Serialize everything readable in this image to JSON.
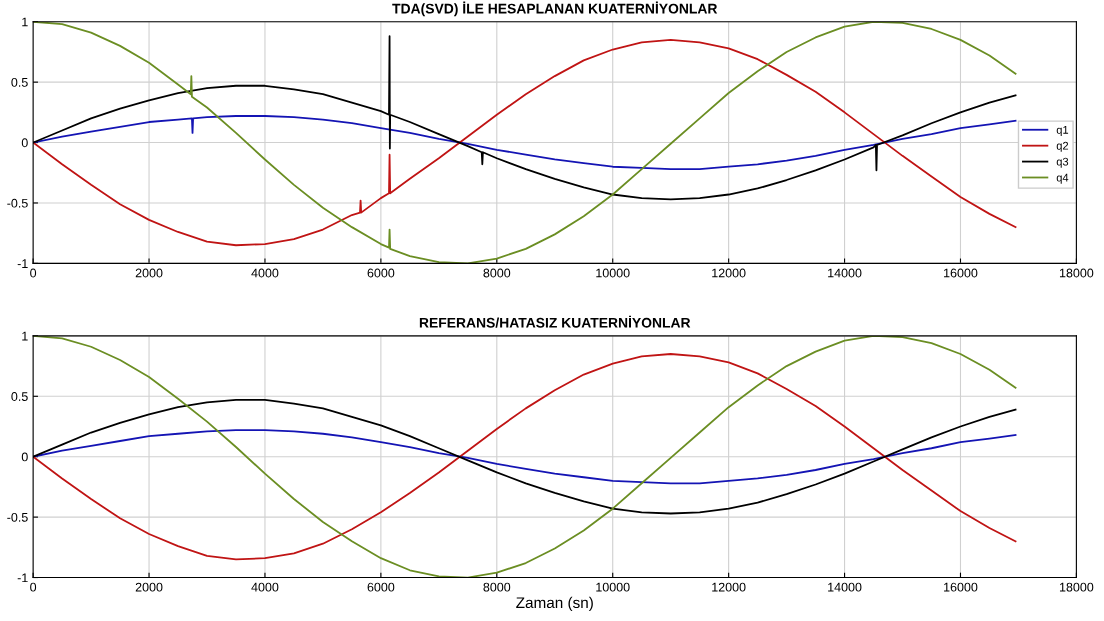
{
  "chart_data": [
    {
      "type": "line",
      "title": "TDA(SVD) İLE HESAPLANAN KUATERNİYONLAR",
      "xlim": [
        0,
        18000
      ],
      "xticks": [
        0,
        2000,
        4000,
        6000,
        8000,
        10000,
        12000,
        14000,
        16000,
        18000
      ],
      "ylim": [
        -1,
        1
      ],
      "yticks": [
        -1,
        -0.5,
        0,
        0.5,
        1
      ],
      "grid": true,
      "legend": "right",
      "line_style": "solid",
      "series": [
        {
          "name": "q1",
          "color": "#1414b4",
          "x": [
            0,
            500,
            1000,
            1500,
            2000,
            2500,
            2740,
            2750,
            2760,
            3000,
            3500,
            4000,
            4500,
            5000,
            5500,
            6000,
            6500,
            7000,
            7500,
            8000,
            8500,
            9000,
            9500,
            10000,
            10500,
            11000,
            11500,
            12000,
            12500,
            13000,
            13500,
            14000,
            14500,
            15000,
            15500,
            16000,
            16500,
            16950
          ],
          "values": [
            0,
            0.05,
            0.09,
            0.13,
            0.17,
            0.19,
            0.2,
            0.08,
            0.2,
            0.21,
            0.22,
            0.22,
            0.21,
            0.19,
            0.16,
            0.12,
            0.08,
            0.03,
            -0.01,
            -0.06,
            -0.1,
            -0.14,
            -0.17,
            -0.2,
            -0.21,
            -0.22,
            -0.22,
            -0.2,
            -0.18,
            -0.15,
            -0.11,
            -0.06,
            -0.02,
            0.03,
            0.07,
            0.12,
            0.15,
            0.18
          ]
        },
        {
          "name": "q2",
          "color": "#c01414",
          "x": [
            0,
            500,
            1000,
            1500,
            2000,
            2500,
            3000,
            3500,
            4000,
            4500,
            5000,
            5500,
            5640,
            5650,
            5660,
            6000,
            6140,
            6150,
            6160,
            6500,
            7000,
            7500,
            8000,
            8500,
            9000,
            9500,
            10000,
            10500,
            11000,
            11500,
            12000,
            12500,
            13000,
            13500,
            14000,
            14500,
            15000,
            15500,
            16000,
            16500,
            16950
          ],
          "values": [
            0,
            -0.18,
            -0.35,
            -0.51,
            -0.64,
            -0.74,
            -0.82,
            -0.85,
            -0.84,
            -0.8,
            -0.72,
            -0.6,
            -0.58,
            -0.48,
            -0.58,
            -0.46,
            -0.42,
            -0.1,
            -0.42,
            -0.3,
            -0.13,
            0.05,
            0.23,
            0.4,
            0.55,
            0.68,
            0.77,
            0.83,
            0.85,
            0.83,
            0.78,
            0.69,
            0.56,
            0.42,
            0.25,
            0.07,
            -0.11,
            -0.28,
            -0.45,
            -0.59,
            -0.7
          ]
        },
        {
          "name": "q3",
          "color": "#000000",
          "x": [
            0,
            500,
            1000,
            1500,
            2000,
            2500,
            3000,
            3500,
            4000,
            4500,
            5000,
            5500,
            6000,
            6140,
            6150,
            6155,
            6160,
            6500,
            7000,
            7500,
            7740,
            7750,
            7760,
            8000,
            8500,
            9000,
            9500,
            10000,
            10500,
            11000,
            11500,
            12000,
            12500,
            13000,
            13500,
            14000,
            14500,
            14540,
            14550,
            14560,
            15000,
            15500,
            16000,
            16500,
            16950
          ],
          "values": [
            0,
            0.1,
            0.2,
            0.28,
            0.35,
            0.41,
            0.45,
            0.47,
            0.47,
            0.44,
            0.4,
            0.33,
            0.26,
            0.23,
            0.88,
            -0.05,
            0.23,
            0.17,
            0.07,
            -0.03,
            -0.08,
            -0.18,
            -0.08,
            -0.13,
            -0.22,
            -0.3,
            -0.37,
            -0.43,
            -0.46,
            -0.47,
            -0.46,
            -0.43,
            -0.38,
            -0.31,
            -0.23,
            -0.14,
            -0.04,
            -0.02,
            -0.23,
            -0.02,
            0.06,
            0.16,
            0.25,
            0.33,
            0.39
          ]
        },
        {
          "name": "q4",
          "color": "#6b8e23",
          "x": [
            0,
            500,
            1000,
            1500,
            2000,
            2500,
            2720,
            2730,
            2740,
            3000,
            3500,
            4000,
            4500,
            5000,
            5500,
            6000,
            6140,
            6150,
            6160,
            6500,
            7000,
            7500,
            8000,
            8500,
            9000,
            9500,
            10000,
            10500,
            11000,
            11500,
            12000,
            12500,
            13000,
            13500,
            14000,
            14500,
            15000,
            15500,
            16000,
            16500,
            16950
          ],
          "values": [
            1,
            0.98,
            0.91,
            0.8,
            0.66,
            0.48,
            0.4,
            0.55,
            0.38,
            0.29,
            0.08,
            -0.14,
            -0.35,
            -0.54,
            -0.7,
            -0.84,
            -0.87,
            -0.72,
            -0.88,
            -0.94,
            -0.99,
            -1,
            -0.96,
            -0.88,
            -0.76,
            -0.61,
            -0.43,
            -0.22,
            -0.01,
            0.2,
            0.41,
            0.59,
            0.75,
            0.87,
            0.96,
            1,
            0.99,
            0.94,
            0.85,
            0.72,
            0.57
          ]
        }
      ]
    },
    {
      "type": "line",
      "title": "REFERANS/HATASIZ KUATERNİYONLAR",
      "xlabel": "Zaman (sn)",
      "xlim": [
        0,
        18000
      ],
      "xticks": [
        0,
        2000,
        4000,
        6000,
        8000,
        10000,
        12000,
        14000,
        16000,
        18000
      ],
      "ylim": [
        -1,
        1
      ],
      "yticks": [
        -1,
        -0.5,
        0,
        0.5,
        1
      ],
      "grid": true,
      "line_style": "solid",
      "x": [
        0,
        500,
        1000,
        1500,
        2000,
        2500,
        3000,
        3500,
        4000,
        4500,
        5000,
        5500,
        6000,
        6500,
        7000,
        7500,
        8000,
        8500,
        9000,
        9500,
        10000,
        10500,
        11000,
        11500,
        12000,
        12500,
        13000,
        13500,
        14000,
        14500,
        15000,
        15500,
        16000,
        16500,
        16950
      ],
      "series": [
        {
          "color": "#1414b4",
          "values": [
            0,
            0.05,
            0.09,
            0.13,
            0.17,
            0.19,
            0.21,
            0.22,
            0.22,
            0.21,
            0.19,
            0.16,
            0.12,
            0.08,
            0.03,
            -0.01,
            -0.06,
            -0.1,
            -0.14,
            -0.17,
            -0.2,
            -0.21,
            -0.22,
            -0.22,
            -0.2,
            -0.18,
            -0.15,
            -0.11,
            -0.06,
            -0.02,
            0.03,
            0.07,
            0.12,
            0.15,
            0.18
          ]
        },
        {
          "color": "#c01414",
          "values": [
            0,
            -0.18,
            -0.35,
            -0.51,
            -0.64,
            -0.74,
            -0.82,
            -0.85,
            -0.84,
            -0.8,
            -0.72,
            -0.6,
            -0.46,
            -0.3,
            -0.13,
            0.05,
            0.23,
            0.4,
            0.55,
            0.68,
            0.77,
            0.83,
            0.85,
            0.83,
            0.78,
            0.69,
            0.56,
            0.42,
            0.25,
            0.07,
            -0.11,
            -0.28,
            -0.45,
            -0.59,
            -0.7
          ]
        },
        {
          "color": "#000000",
          "values": [
            0,
            0.1,
            0.2,
            0.28,
            0.35,
            0.41,
            0.45,
            0.47,
            0.47,
            0.44,
            0.4,
            0.33,
            0.26,
            0.17,
            0.07,
            -0.03,
            -0.13,
            -0.22,
            -0.3,
            -0.37,
            -0.43,
            -0.46,
            -0.47,
            -0.46,
            -0.43,
            -0.38,
            -0.31,
            -0.23,
            -0.14,
            -0.04,
            0.06,
            0.16,
            0.25,
            0.33,
            0.39
          ]
        },
        {
          "color": "#6b8e23",
          "values": [
            1,
            0.98,
            0.91,
            0.8,
            0.66,
            0.48,
            0.29,
            0.08,
            -0.14,
            -0.35,
            -0.54,
            -0.7,
            -0.84,
            -0.94,
            -0.99,
            -1,
            -0.96,
            -0.88,
            -0.76,
            -0.61,
            -0.43,
            -0.22,
            -0.01,
            0.2,
            0.41,
            0.59,
            0.75,
            0.87,
            0.96,
            1,
            0.99,
            0.94,
            0.85,
            0.72,
            0.57
          ]
        }
      ]
    }
  ]
}
